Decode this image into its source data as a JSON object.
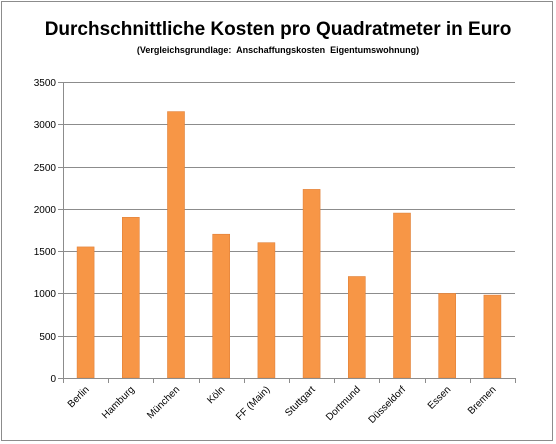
{
  "chart_data": {
    "type": "bar",
    "title": "Durchschnittliche Kosten pro Quadratmeter in Euro",
    "subtitle": "(Vergleichsgrundlage:  Anschaffungskosten  Eigentumswohnung)",
    "xlabel": "",
    "ylabel": "",
    "categories": [
      "Berlin",
      "Hamburg",
      "München",
      "Köln",
      "FF (Main)",
      "Stuttgart",
      "Dortmund",
      "Düsseldorf",
      "Essen",
      "Bremen"
    ],
    "values": [
      1550,
      1900,
      3150,
      1700,
      1600,
      2230,
      1200,
      1950,
      1000,
      980
    ],
    "ylim": [
      0,
      3500
    ],
    "yticks": [
      0,
      500,
      1000,
      1500,
      2000,
      2500,
      3000,
      3500
    ],
    "grid": true,
    "legend": "none",
    "colors": {
      "bar_fill": "#F79646",
      "bar_stroke": "#E0803A",
      "grid": "#8C8C8C",
      "axis": "#8C8C8C"
    }
  }
}
